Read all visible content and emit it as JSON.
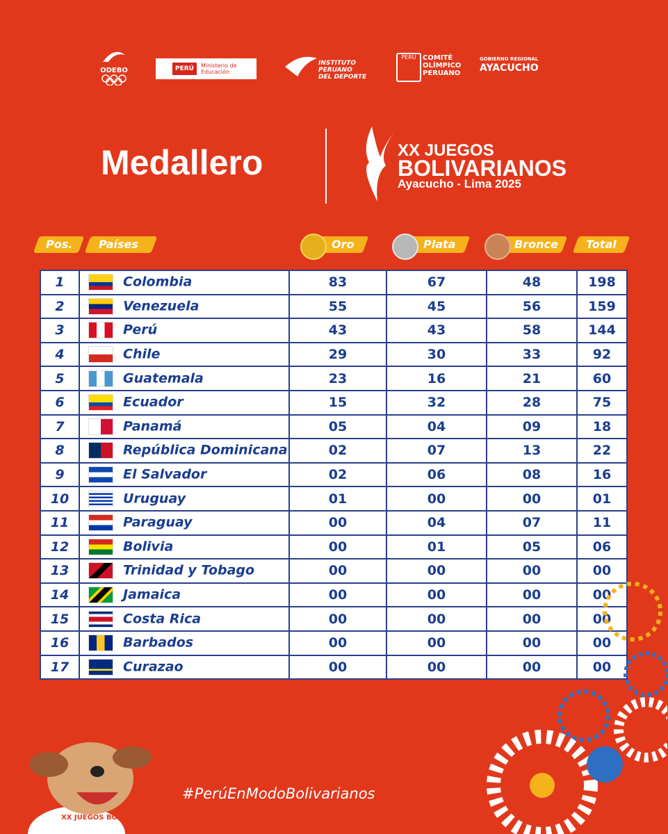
{
  "logos": {
    "odebo": "ODEBO",
    "minedu_peru": "PERÚ",
    "minedu": "Ministerio de Educación",
    "ipd": "INSTITUTO PERUANO DEL DEPORTE",
    "cop_peru": "PERÚ",
    "cop": "COMITÉ OLÍMPICO PERUANO",
    "gobierno_regional": "GOBIERNO REGIONAL",
    "ayacucho": "AYACUCHO"
  },
  "header": {
    "title": "Medallero",
    "event_line1": "XX JUEGOS",
    "event_line2": "BOLIVARIANOS",
    "event_line3": "Ayacucho - Lima 2025"
  },
  "table": {
    "headers": [
      "Pos.",
      "Países",
      "Oro",
      "Plata",
      "Bronce",
      "Total"
    ],
    "rows": [
      [
        "1",
        "Colombia",
        "83",
        "67",
        "48",
        "198"
      ],
      [
        "2",
        "Venezuela",
        "55",
        "45",
        "56",
        "159"
      ],
      [
        "3",
        "Perú",
        "43",
        "43",
        "58",
        "144"
      ],
      [
        "4",
        "Chile",
        "29",
        "30",
        "33",
        "92"
      ],
      [
        "5",
        "Guatemala",
        "23",
        "16",
        "21",
        "60"
      ],
      [
        "6",
        "Ecuador",
        "15",
        "32",
        "28",
        "75"
      ],
      [
        "7",
        "Panamá",
        "05",
        "04",
        "09",
        "18"
      ],
      [
        "8",
        "República Dominicana",
        "02",
        "07",
        "13",
        "22"
      ],
      [
        "9",
        "El Salvador",
        "02",
        "06",
        "08",
        "16"
      ],
      [
        "10",
        "Uruguay",
        "01",
        "00",
        "00",
        "01"
      ],
      [
        "11",
        "Paraguay",
        "00",
        "04",
        "07",
        "11"
      ],
      [
        "12",
        "Bolivia",
        "00",
        "01",
        "05",
        "06"
      ],
      [
        "13",
        "Trinidad y Tobago",
        "00",
        "00",
        "00",
        "00"
      ],
      [
        "14",
        "Jamaica",
        "00",
        "00",
        "00",
        "00"
      ],
      [
        "15",
        "Costa Rica",
        "00",
        "00",
        "00",
        "00"
      ],
      [
        "16",
        "Barbados",
        "00",
        "00",
        "00",
        "00"
      ],
      [
        "17",
        "Curazao",
        "00",
        "00",
        "00",
        "00"
      ]
    ]
  },
  "footer": {
    "hashtag": "#PerúEnModoBolivarianos",
    "shirt": "XX JUEGOS BOLIVARIANOS"
  }
}
